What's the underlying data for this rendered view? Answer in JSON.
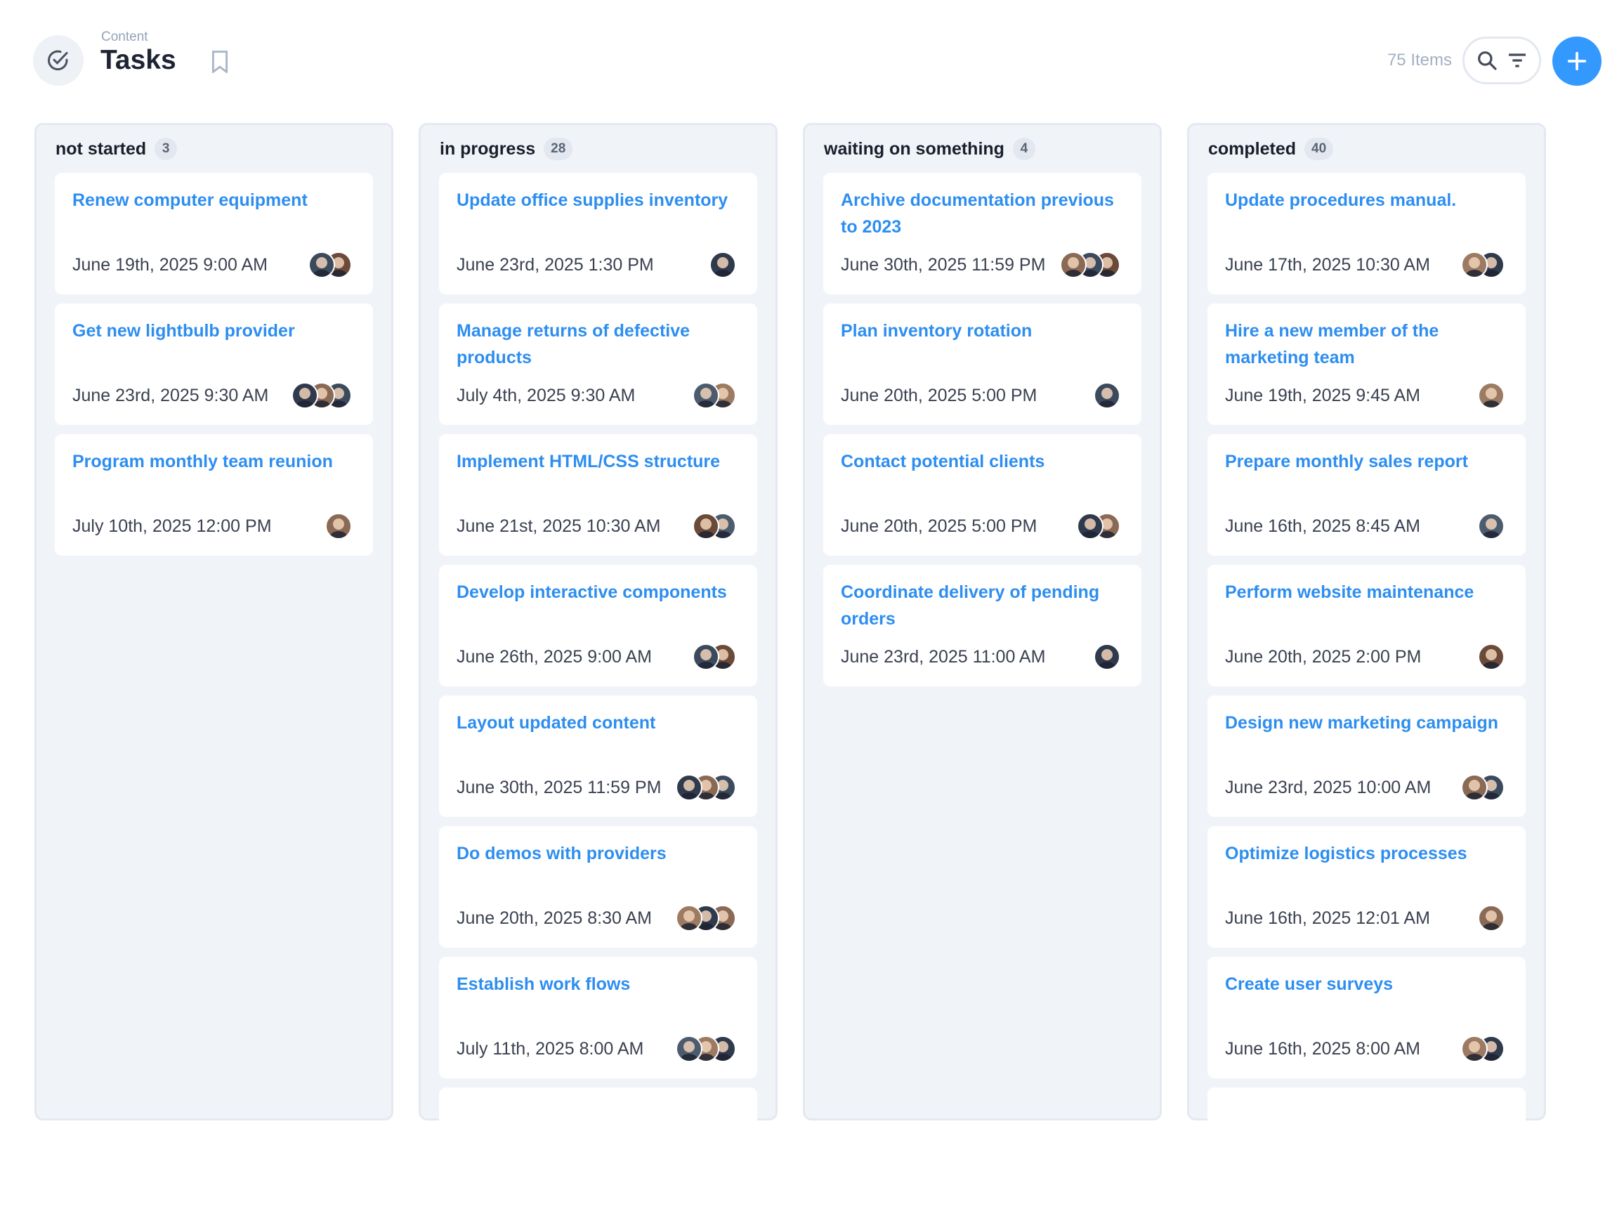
{
  "header": {
    "breadcrumb": "Content",
    "title": "Tasks",
    "item_count": "75 Items",
    "icons": [
      "check-circle-icon",
      "bookmark-icon",
      "search-icon",
      "filter-icon",
      "plus-icon"
    ],
    "accent_color": "#3399ff",
    "title_link_color": "#2d8ef0"
  },
  "columns": [
    {
      "title": "not started",
      "count": "3",
      "cards": [
        {
          "title": "Renew computer equipment",
          "date": "June 19th, 2025 9:00 AM",
          "assignees": 2
        },
        {
          "title": "Get new lightbulb provider",
          "date": "June 23rd, 2025 9:30 AM",
          "assignees": 3
        },
        {
          "title": "Program monthly team reunion",
          "date": "July 10th, 2025 12:00 PM",
          "assignees": 1
        }
      ]
    },
    {
      "title": "in progress",
      "count": "28",
      "cards": [
        {
          "title": "Update office supplies inventory",
          "date": "June 23rd, 2025 1:30 PM",
          "assignees": 1
        },
        {
          "title": "Manage returns of defective products",
          "date": "July 4th, 2025 9:30 AM",
          "assignees": 2
        },
        {
          "title": "Implement HTML/CSS structure",
          "date": "June 21st, 2025 10:30 AM",
          "assignees": 2
        },
        {
          "title": "Develop interactive components",
          "date": "June 26th, 2025 9:00 AM",
          "assignees": 2
        },
        {
          "title": "Layout updated content",
          "date": "June 30th, 2025 11:59 PM",
          "assignees": 3
        },
        {
          "title": "Do demos with providers",
          "date": "June 20th, 2025 8:30 AM",
          "assignees": 3
        },
        {
          "title": "Establish work flows",
          "date": "July 11th, 2025 8:00 AM",
          "assignees": 3
        },
        {
          "title": "",
          "date": "",
          "assignees": 0
        }
      ]
    },
    {
      "title": "waiting on something",
      "count": "4",
      "cards": [
        {
          "title": "Archive documentation previous to 2023",
          "date": "June 30th, 2025 11:59 PM",
          "assignees": 3
        },
        {
          "title": "Plan inventory rotation",
          "date": "June 20th, 2025 5:00 PM",
          "assignees": 1
        },
        {
          "title": "Contact potential clients",
          "date": "June 20th, 2025 5:00 PM",
          "assignees": 2
        },
        {
          "title": "Coordinate delivery of pending orders",
          "date": "June 23rd, 2025 11:00 AM",
          "assignees": 1
        }
      ]
    },
    {
      "title": "completed",
      "count": "40",
      "cards": [
        {
          "title": "Update procedures manual.",
          "date": "June 17th, 2025 10:30 AM",
          "assignees": 2
        },
        {
          "title": "Hire a new member of the marketing team",
          "date": "June 19th, 2025 9:45 AM",
          "assignees": 1
        },
        {
          "title": "Prepare monthly sales report",
          "date": "June 16th, 2025 8:45 AM",
          "assignees": 1
        },
        {
          "title": "Perform website maintenance",
          "date": "June 20th, 2025 2:00 PM",
          "assignees": 1
        },
        {
          "title": "Design new marketing campaign",
          "date": "June 23rd, 2025 10:00 AM",
          "assignees": 2
        },
        {
          "title": "Optimize logistics processes",
          "date": "June 16th, 2025 12:01 AM",
          "assignees": 1
        },
        {
          "title": "Create user surveys",
          "date": "June 16th, 2025 8:00 AM",
          "assignees": 2
        },
        {
          "title": "",
          "date": "",
          "assignees": 0
        }
      ]
    }
  ]
}
